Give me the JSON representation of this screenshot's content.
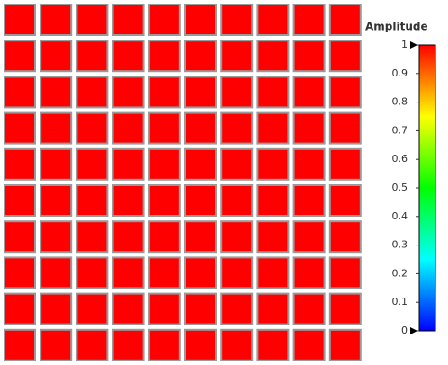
{
  "chart_data": {
    "type": "heatmap",
    "colorbar_label": "Amplitude",
    "values": [
      [
        1,
        1,
        1,
        1,
        1,
        1,
        1,
        1,
        1,
        1
      ],
      [
        1,
        1,
        1,
        1,
        1,
        1,
        1,
        1,
        1,
        1
      ],
      [
        1,
        1,
        1,
        1,
        1,
        1,
        1,
        1,
        1,
        1
      ],
      [
        1,
        1,
        1,
        1,
        1,
        1,
        1,
        1,
        1,
        1
      ],
      [
        1,
        1,
        1,
        1,
        1,
        1,
        1,
        1,
        1,
        1
      ],
      [
        1,
        1,
        1,
        1,
        1,
        1,
        1,
        1,
        1,
        1
      ],
      [
        1,
        1,
        1,
        1,
        1,
        1,
        1,
        1,
        1,
        1
      ],
      [
        1,
        1,
        1,
        1,
        1,
        1,
        1,
        1,
        1,
        1
      ],
      [
        1,
        1,
        1,
        1,
        1,
        1,
        1,
        1,
        1,
        1
      ],
      [
        1,
        1,
        1,
        1,
        1,
        1,
        1,
        1,
        1,
        1
      ]
    ],
    "clim": [
      0,
      1
    ],
    "cticks": [
      0,
      0.1,
      0.2,
      0.3,
      0.4,
      0.5,
      0.6,
      0.7,
      0.8,
      0.9,
      1
    ],
    "colormap": [
      "#0000ff",
      "#0080ff",
      "#00ffff",
      "#00ff80",
      "#00ff00",
      "#80ff00",
      "#ffff00",
      "#ff8000",
      "#ff0000"
    ]
  }
}
